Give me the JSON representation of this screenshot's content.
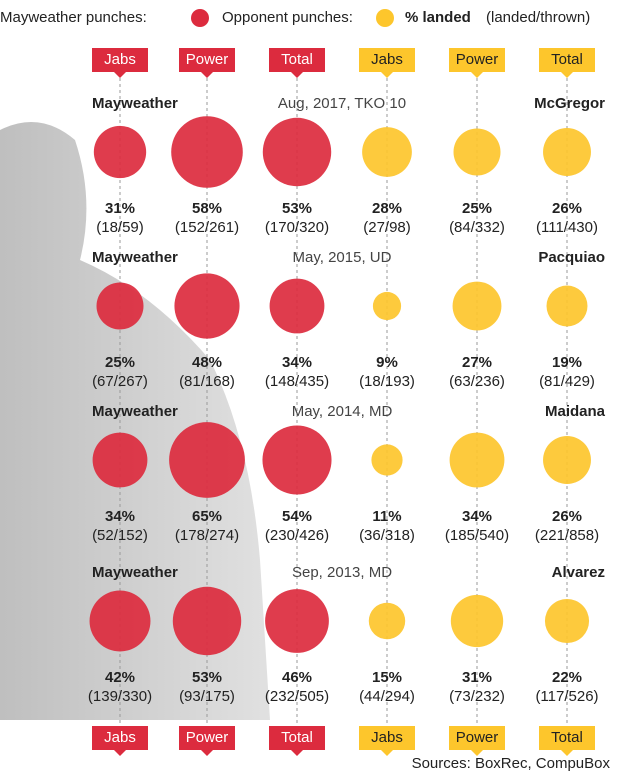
{
  "chart_data": {
    "type": "bubble-grid",
    "legend": {
      "mayweather": "Mayweather punches:",
      "opponent": "Opponent punches:",
      "landed": "% landed",
      "note": "(landed/thrown)"
    },
    "colors": {
      "mayweather": "#dc2b3e",
      "opponent": "#fdc62c"
    },
    "columns": [
      "Jabs",
      "Power",
      "Total",
      "Jabs",
      "Power",
      "Total"
    ],
    "fights": [
      {
        "fighter": "Mayweather",
        "info": "Aug, 2017, TKO 10",
        "opponent": "McGregor",
        "values": [
          31,
          58,
          53,
          28,
          25,
          26
        ],
        "value_labels": [
          "31%",
          "58%",
          "53%",
          "28%",
          "25%",
          "26%"
        ],
        "details": [
          "(18/59)",
          "(152/261)",
          "(170/320)",
          "(27/98)",
          "(84/332)",
          "(111/430)"
        ]
      },
      {
        "fighter": "Mayweather",
        "info": "May, 2015, UD",
        "opponent": "Pacquiao",
        "values": [
          25,
          48,
          34,
          9,
          27,
          19
        ],
        "value_labels": [
          "25%",
          "48%",
          "34%",
          "9%",
          "27%",
          "19%"
        ],
        "details": [
          "(67/267)",
          "(81/168)",
          "(148/435)",
          "(18/193)",
          "(63/236)",
          "(81/429)"
        ]
      },
      {
        "fighter": "Mayweather",
        "info": "May, 2014, MD",
        "opponent": "Maidana",
        "values": [
          34,
          65,
          54,
          11,
          34,
          26
        ],
        "value_labels": [
          "34%",
          "65%",
          "54%",
          "11%",
          "34%",
          "26%"
        ],
        "details": [
          "(52/152)",
          "(178/274)",
          "(230/426)",
          "(36/318)",
          "(185/540)",
          "(221/858)"
        ]
      },
      {
        "fighter": "Mayweather",
        "info": "Sep, 2013, MD",
        "opponent": "Alvarez",
        "values": [
          42,
          53,
          46,
          15,
          31,
          22
        ],
        "value_labels": [
          "42%",
          "53%",
          "46%",
          "15%",
          "31%",
          "22%"
        ],
        "details": [
          "(139/330)",
          "(93/175)",
          "(232/505)",
          "(44/294)",
          "(73/232)",
          "(117/526)"
        ]
      }
    ],
    "source": "Sources: BoxRec, CompuBox"
  }
}
